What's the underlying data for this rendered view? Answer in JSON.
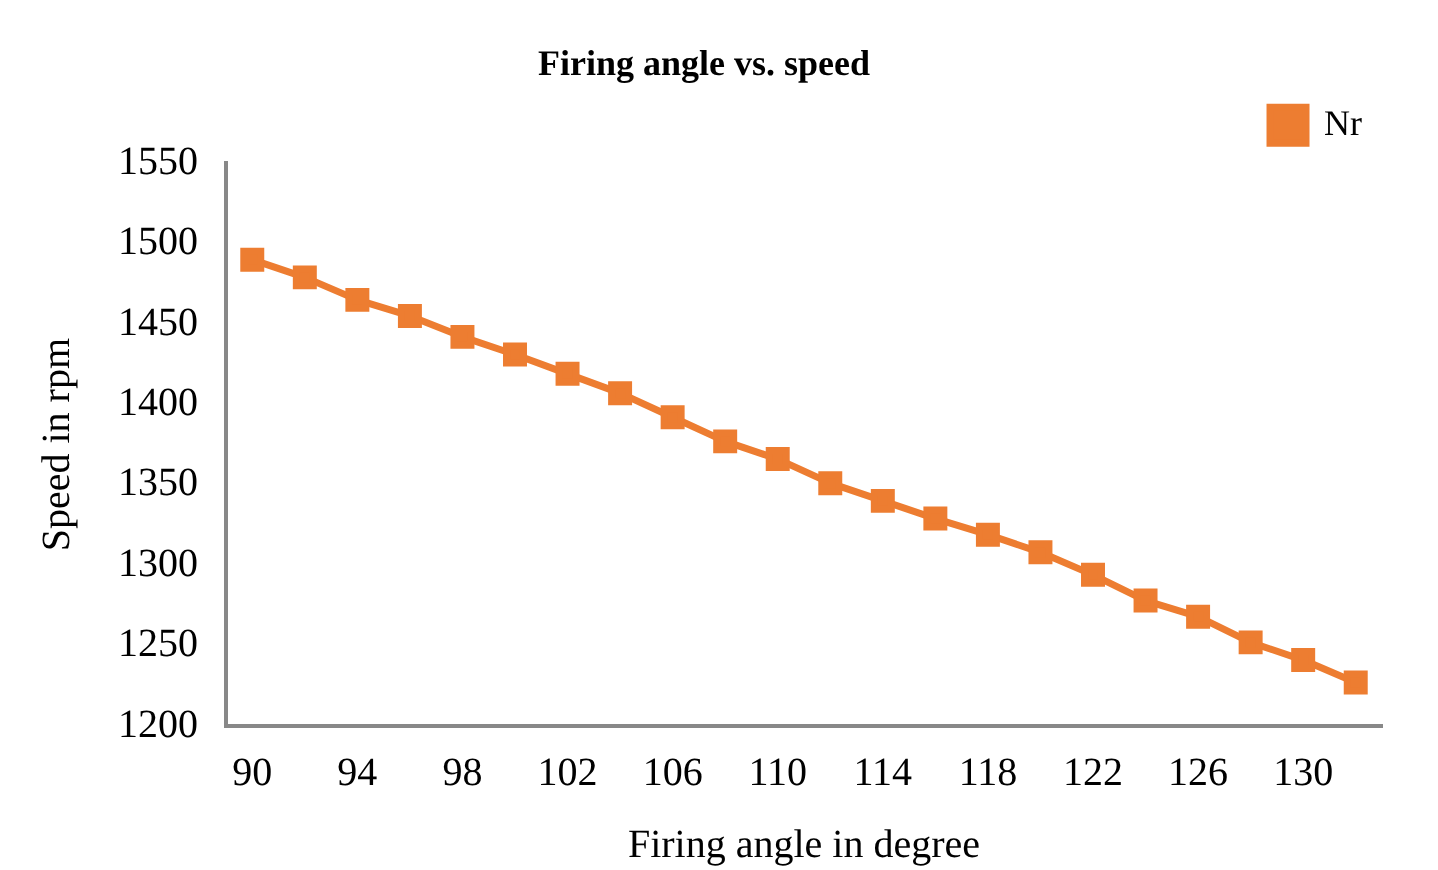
{
  "chart_data": {
    "type": "line",
    "title": "Firing angle vs. speed",
    "xlabel": "Firing angle in degree",
    "ylabel": "Speed in rpm",
    "x": [
      90,
      92,
      94,
      96,
      98,
      100,
      102,
      104,
      106,
      108,
      110,
      112,
      114,
      116,
      118,
      120,
      122,
      124,
      126,
      128,
      130,
      132
    ],
    "series": [
      {
        "name": "Nr",
        "color": "#ed7d31",
        "values": [
          1490,
          1479,
          1465,
          1455,
          1442,
          1431,
          1419,
          1407,
          1392,
          1377,
          1366,
          1351,
          1340,
          1329,
          1319,
          1308,
          1294,
          1278,
          1268,
          1252,
          1241,
          1227
        ]
      }
    ],
    "xlim": [
      89,
      133
    ],
    "xticks": [
      90,
      94,
      98,
      102,
      106,
      110,
      114,
      118,
      122,
      126,
      130
    ],
    "ylim": [
      1200,
      1550
    ],
    "yticks": [
      1200,
      1250,
      1300,
      1350,
      1400,
      1450,
      1500,
      1550
    ],
    "grid": false,
    "legend": "top right",
    "marker": "square",
    "line_style": "solid"
  }
}
